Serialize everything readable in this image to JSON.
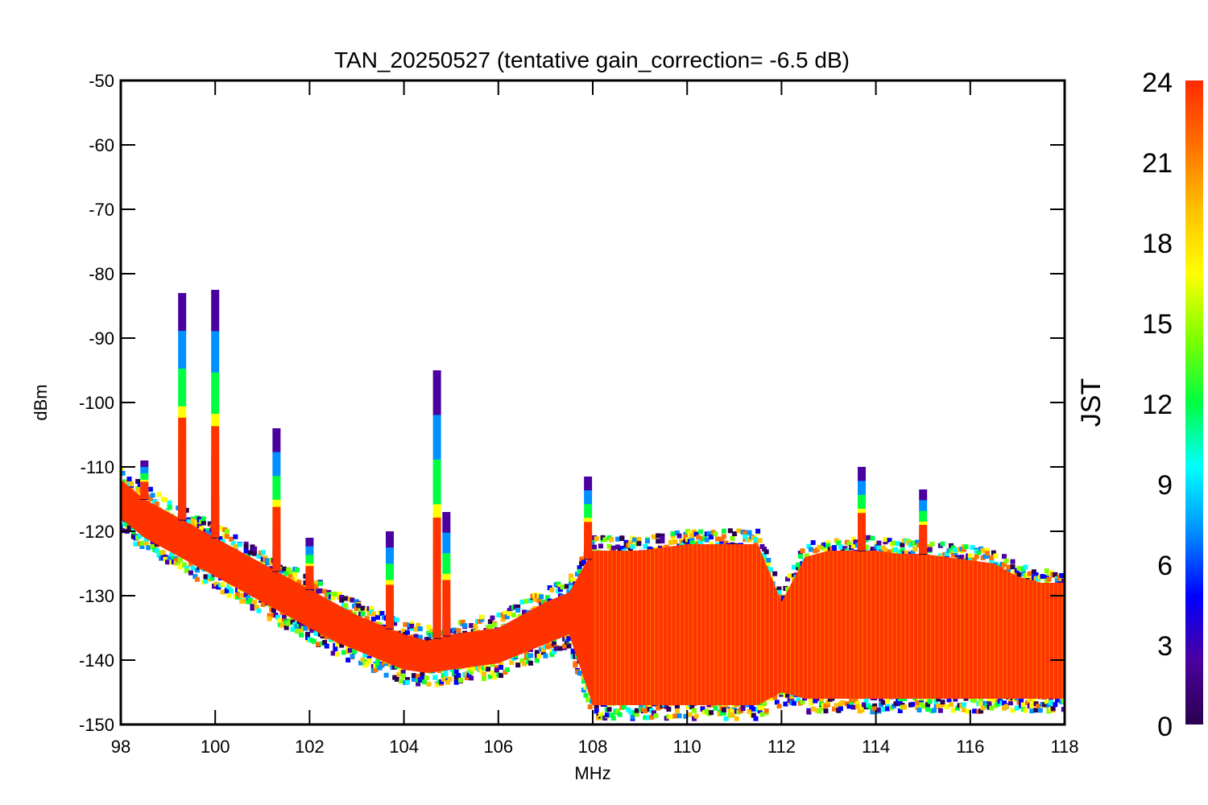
{
  "chart_data": {
    "type": "scatter",
    "title": "TAN_20250527 (tentative gain_correction= -6.5 dB)",
    "xlabel": "MHz",
    "ylabel": "dBm",
    "xlim": [
      98,
      118
    ],
    "ylim": [
      -150,
      -50
    ],
    "xticks": [
      "98",
      "100",
      "102",
      "104",
      "106",
      "108",
      "110",
      "112",
      "114",
      "116",
      "118"
    ],
    "yticks": [
      "-50",
      "-60",
      "-70",
      "-80",
      "-90",
      "-100",
      "-110",
      "-120",
      "-130",
      "-140",
      "-150"
    ],
    "grid": false,
    "colorbar": {
      "label": "JST",
      "range": [
        0,
        24
      ],
      "ticks": [
        "24",
        "21",
        "18",
        "15",
        "12",
        "9",
        "6",
        "3",
        "0"
      ],
      "colormap": [
        "#2a0050",
        "#4b00a0",
        "#0000ff",
        "#0090ff",
        "#00ffff",
        "#00ff40",
        "#80ff00",
        "#ffff00",
        "#ffc000",
        "#ff7000",
        "#ff2a00"
      ]
    },
    "series": [
      {
        "x": [
          98.0,
          98.5,
          99.0,
          99.5,
          100.0,
          100.5,
          101.0,
          101.5,
          102.0,
          102.5,
          103.0,
          103.5,
          104.0,
          104.5,
          105.0,
          105.5,
          106.0,
          106.5,
          107.0,
          107.5,
          108.0,
          108.5,
          109.0,
          109.5,
          110.0,
          110.5,
          111.0,
          111.5,
          112.0,
          112.5,
          113.0,
          113.5,
          114.0,
          114.5,
          115.0,
          115.5,
          116.0,
          116.5,
          117.0,
          117.5,
          118.0
        ],
        "y_upper": [
          -112,
          -115,
          -117,
          -119,
          -121,
          -123,
          -125,
          -127,
          -129,
          -131,
          -133,
          -134.5,
          -136,
          -137,
          -136,
          -135.5,
          -135,
          -133,
          -131,
          -129.5,
          -123,
          -123,
          -123,
          -122.5,
          -122,
          -122,
          -122,
          -122,
          -131,
          -124,
          -123,
          -123,
          -123,
          -123.5,
          -123.5,
          -124,
          -124.5,
          -125,
          -127,
          -128,
          -128
        ],
        "y_lower": [
          -118,
          -121,
          -123,
          -125,
          -127,
          -129,
          -131,
          -133,
          -135,
          -137,
          -138.5,
          -140,
          -141.5,
          -142,
          -141.5,
          -141,
          -140.5,
          -139,
          -137.5,
          -136,
          -147,
          -147,
          -147,
          -147,
          -147,
          -147,
          -147,
          -147,
          -145,
          -146,
          -146,
          -146,
          -146,
          -146,
          -146,
          -146,
          -146,
          -146,
          -146,
          -146,
          -146
        ]
      }
    ],
    "spikes": [
      {
        "x": 98.5,
        "y_top": -109
      },
      {
        "x": 99.3,
        "y_top": -83
      },
      {
        "x": 100.0,
        "y_top": -82.5
      },
      {
        "x": 101.3,
        "y_top": -104
      },
      {
        "x": 102.0,
        "y_top": -121
      },
      {
        "x": 103.7,
        "y_top": -120
      },
      {
        "x": 104.7,
        "y_top": -95
      },
      {
        "x": 104.9,
        "y_top": -117
      },
      {
        "x": 107.9,
        "y_top": -111.5
      },
      {
        "x": 113.7,
        "y_top": -110
      },
      {
        "x": 115.0,
        "y_top": -113.5
      }
    ]
  }
}
